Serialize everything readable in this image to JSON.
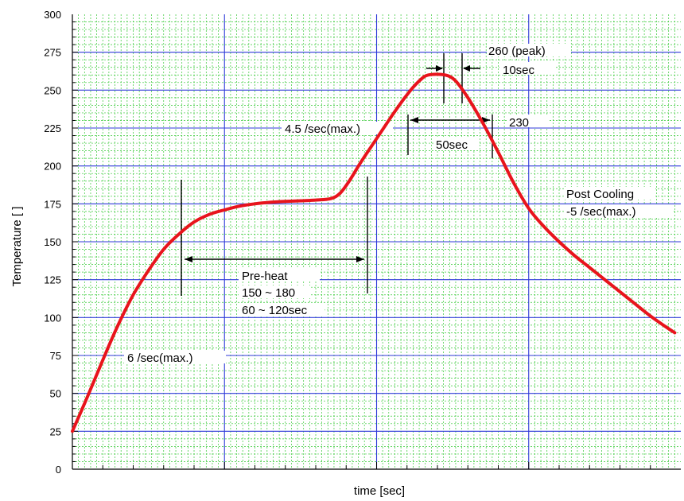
{
  "chart_data": {
    "type": "line",
    "xlabel": "time [sec]",
    "ylabel": "Temperature [    ]",
    "xlim": [
      0,
      400
    ],
    "ylim": [
      0,
      300
    ],
    "y_ticks": [
      0,
      25,
      50,
      75,
      100,
      125,
      150,
      175,
      200,
      225,
      250,
      275,
      300
    ],
    "grid": true,
    "colors": {
      "curve": "#e8141c",
      "major_grid": "#2f3ad9",
      "minor_grid": "#36c936",
      "axis": "#000000"
    },
    "series": [
      {
        "values": [
          {
            "x": 0,
            "y": 25
          },
          {
            "x": 10,
            "y": 48
          },
          {
            "x": 20,
            "y": 72
          },
          {
            "x": 30,
            "y": 95
          },
          {
            "x": 40,
            "y": 115
          },
          {
            "x": 50,
            "y": 131
          },
          {
            "x": 60,
            "y": 145
          },
          {
            "x": 70,
            "y": 155
          },
          {
            "x": 80,
            "y": 163
          },
          {
            "x": 90,
            "y": 168
          },
          {
            "x": 100,
            "y": 171
          },
          {
            "x": 110,
            "y": 173.5
          },
          {
            "x": 120,
            "y": 175
          },
          {
            "x": 130,
            "y": 176
          },
          {
            "x": 140,
            "y": 176.6
          },
          {
            "x": 150,
            "y": 177
          },
          {
            "x": 160,
            "y": 177.5
          },
          {
            "x": 170,
            "y": 178.5
          },
          {
            "x": 176,
            "y": 182
          },
          {
            "x": 182,
            "y": 190
          },
          {
            "x": 190,
            "y": 203
          },
          {
            "x": 200,
            "y": 218
          },
          {
            "x": 210,
            "y": 233
          },
          {
            "x": 220,
            "y": 247
          },
          {
            "x": 228,
            "y": 256
          },
          {
            "x": 234,
            "y": 260
          },
          {
            "x": 245,
            "y": 260
          },
          {
            "x": 252,
            "y": 256
          },
          {
            "x": 260,
            "y": 245
          },
          {
            "x": 270,
            "y": 228
          },
          {
            "x": 280,
            "y": 209
          },
          {
            "x": 290,
            "y": 189
          },
          {
            "x": 300,
            "y": 172
          },
          {
            "x": 310,
            "y": 160
          },
          {
            "x": 320,
            "y": 150
          },
          {
            "x": 330,
            "y": 141
          },
          {
            "x": 340,
            "y": 133
          },
          {
            "x": 350,
            "y": 125
          },
          {
            "x": 360,
            "y": 117
          },
          {
            "x": 370,
            "y": 109
          },
          {
            "x": 380,
            "y": 101
          },
          {
            "x": 390,
            "y": 94
          },
          {
            "x": 396,
            "y": 90
          }
        ]
      }
    ],
    "annotations": {
      "preheat_title": "Pre-heat",
      "preheat_temp": "150 ~ 180",
      "preheat_time": "60 ~ 120sec",
      "ramp_up_1": "6    /sec(max.)",
      "ramp_up_2": "4.5    /sec(max.)",
      "peak": "260    (peak)",
      "peak_time": "10sec",
      "reflow_temp": "230",
      "reflow_time": "50sec",
      "cooling_title": "Post Cooling",
      "cooling_rate": "-5    /sec(max.)"
    }
  }
}
